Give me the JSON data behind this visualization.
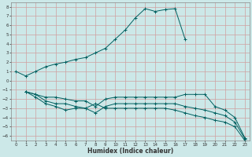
{
  "xlabel": "Humidex (Indice chaleur)",
  "bg_color": "#cce8e8",
  "grid_color": "#b0d0d0",
  "line_color": "#006060",
  "xlim": [
    -0.5,
    23.5
  ],
  "ylim": [
    -6.5,
    8.5
  ],
  "yticks": [
    8,
    7,
    6,
    5,
    4,
    3,
    2,
    1,
    0,
    -1,
    -2,
    -3,
    -4,
    -5,
    -6
  ],
  "xticks": [
    0,
    1,
    2,
    3,
    4,
    5,
    6,
    7,
    8,
    9,
    10,
    11,
    12,
    13,
    14,
    15,
    16,
    17,
    18,
    19,
    20,
    21,
    22,
    23
  ],
  "line1_x": [
    0,
    1,
    2,
    3,
    4,
    5,
    6,
    7,
    8,
    9,
    10,
    11,
    12,
    13,
    14,
    15,
    16,
    17
  ],
  "line1_y": [
    1.0,
    0.5,
    1.0,
    1.5,
    1.8,
    2.0,
    2.3,
    2.5,
    3.0,
    3.5,
    4.5,
    5.5,
    6.8,
    7.8,
    7.5,
    7.7,
    7.8,
    4.5
  ],
  "line2_x": [
    1,
    2,
    3,
    4,
    5,
    6,
    7,
    8,
    9,
    10,
    11,
    12,
    13,
    14,
    15,
    16,
    17,
    18,
    19,
    20,
    21,
    22,
    23
  ],
  "line2_y": [
    -1.2,
    -1.5,
    -1.8,
    -1.8,
    -2.0,
    -2.2,
    -2.2,
    -2.8,
    -2.0,
    -1.8,
    -1.8,
    -1.8,
    -1.8,
    -1.8,
    -1.8,
    -1.8,
    -1.5,
    -1.5,
    -1.5,
    -2.8,
    -3.2,
    -4.0,
    -6.2
  ],
  "line3_x": [
    1,
    2,
    3,
    4,
    5,
    6,
    7,
    8,
    9,
    10,
    11,
    12,
    13,
    14,
    15,
    16,
    17,
    18,
    19,
    20,
    21,
    22,
    23
  ],
  "line3_y": [
    -1.2,
    -1.5,
    -2.2,
    -2.5,
    -2.5,
    -2.8,
    -3.0,
    -3.5,
    -2.8,
    -2.5,
    -2.5,
    -2.5,
    -2.5,
    -2.5,
    -2.5,
    -2.5,
    -2.8,
    -3.0,
    -3.2,
    -3.5,
    -3.8,
    -4.5,
    -6.3
  ],
  "line4_x": [
    1,
    2,
    3,
    4,
    5,
    6,
    7,
    8,
    9,
    10,
    11,
    12,
    13,
    14,
    15,
    16,
    17,
    18,
    19,
    20,
    21,
    22,
    23
  ],
  "line4_y": [
    -1.2,
    -1.8,
    -2.5,
    -2.8,
    -3.2,
    -3.0,
    -3.0,
    -2.5,
    -3.0,
    -3.0,
    -3.0,
    -3.0,
    -3.0,
    -3.0,
    -3.0,
    -3.2,
    -3.5,
    -3.8,
    -4.0,
    -4.3,
    -4.5,
    -5.0,
    -6.5
  ]
}
